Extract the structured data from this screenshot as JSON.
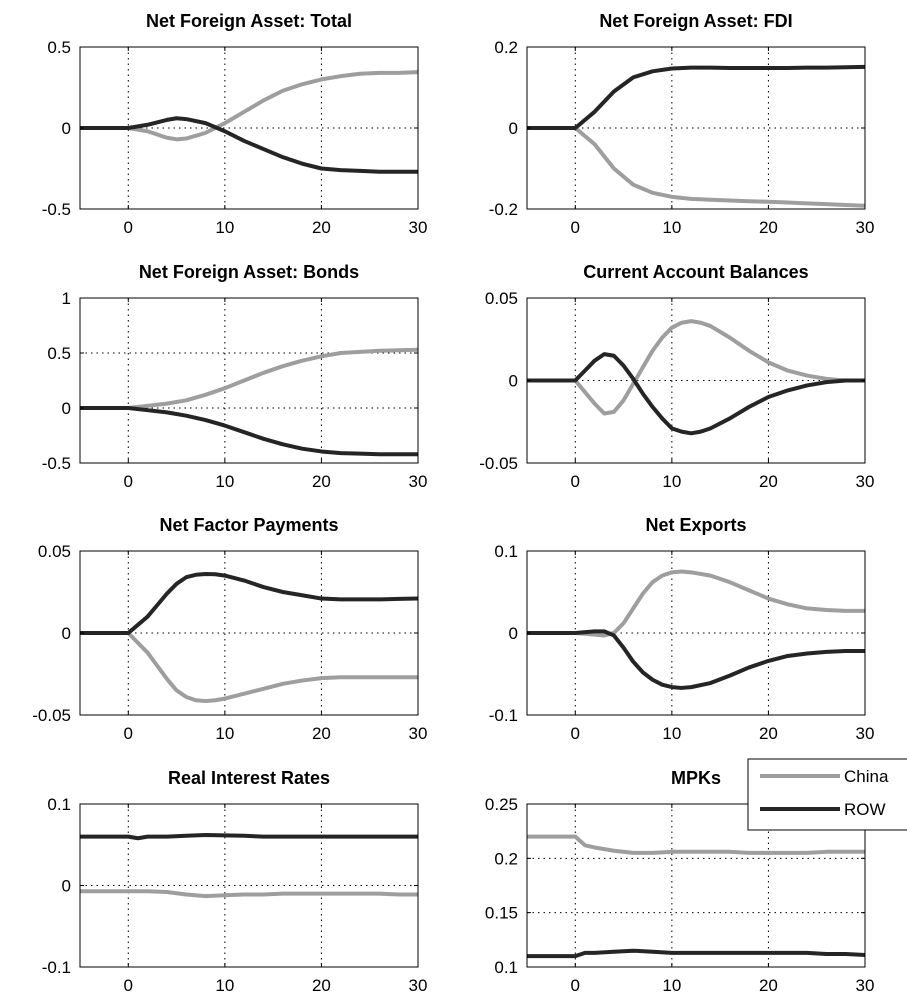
{
  "chart_data": [
    {
      "type": "line",
      "title": "Net Foreign Asset: Total",
      "xlim": [
        -5,
        30
      ],
      "ylim": [
        -0.5,
        0.5
      ],
      "xticks": [
        0,
        10,
        20,
        30
      ],
      "yticks": [
        -0.5,
        0,
        0.5
      ],
      "xtick_labels": [
        "0",
        "10",
        "20",
        "30"
      ],
      "ytick_labels": [
        "-0.5",
        "0",
        "0.5"
      ],
      "grid": true,
      "series": [
        {
          "name": "China",
          "x": [
            -5,
            0,
            2,
            4,
            5,
            6,
            8,
            10,
            12,
            14,
            16,
            18,
            20,
            22,
            24,
            26,
            28,
            30
          ],
          "y": [
            0,
            0,
            -0.02,
            -0.06,
            -0.07,
            -0.065,
            -0.03,
            0.03,
            0.1,
            0.17,
            0.23,
            0.27,
            0.3,
            0.32,
            0.335,
            0.34,
            0.34,
            0.345
          ]
        },
        {
          "name": "ROW",
          "x": [
            -5,
            0,
            2,
            4,
            5,
            6,
            8,
            10,
            12,
            14,
            16,
            18,
            20,
            22,
            24,
            26,
            28,
            30
          ],
          "y": [
            0,
            0,
            0.02,
            0.05,
            0.06,
            0.055,
            0.03,
            -0.02,
            -0.08,
            -0.13,
            -0.18,
            -0.22,
            -0.25,
            -0.26,
            -0.265,
            -0.27,
            -0.27,
            -0.27
          ]
        }
      ]
    },
    {
      "type": "line",
      "title": "Net Foreign Asset: FDI",
      "xlim": [
        -5,
        30
      ],
      "ylim": [
        -0.2,
        0.2
      ],
      "xticks": [
        0,
        10,
        20,
        30
      ],
      "yticks": [
        -0.2,
        0,
        0.2
      ],
      "xtick_labels": [
        "0",
        "10",
        "20",
        "30"
      ],
      "ytick_labels": [
        "-0.2",
        "0",
        "0.2"
      ],
      "grid": true,
      "series": [
        {
          "name": "China",
          "x": [
            -5,
            0,
            2,
            4,
            6,
            8,
            10,
            12,
            14,
            16,
            18,
            20,
            22,
            24,
            26,
            28,
            30
          ],
          "y": [
            0,
            0,
            -0.04,
            -0.1,
            -0.14,
            -0.16,
            -0.17,
            -0.175,
            -0.177,
            -0.179,
            -0.181,
            -0.182,
            -0.184,
            -0.186,
            -0.188,
            -0.19,
            -0.192
          ]
        },
        {
          "name": "ROW",
          "x": [
            -5,
            0,
            2,
            4,
            6,
            8,
            10,
            12,
            14,
            16,
            18,
            20,
            22,
            24,
            26,
            28,
            30
          ],
          "y": [
            0,
            0,
            0.04,
            0.09,
            0.125,
            0.14,
            0.147,
            0.149,
            0.149,
            0.148,
            0.148,
            0.148,
            0.148,
            0.149,
            0.149,
            0.15,
            0.151
          ]
        }
      ]
    },
    {
      "type": "line",
      "title": "Net Foreign Asset: Bonds",
      "xlim": [
        -5,
        30
      ],
      "ylim": [
        -0.5,
        1
      ],
      "xticks": [
        0,
        10,
        20,
        30
      ],
      "yticks": [
        -0.5,
        0,
        0.5,
        1
      ],
      "xtick_labels": [
        "0",
        "10",
        "20",
        "30"
      ],
      "ytick_labels": [
        "-0.5",
        "0",
        "0.5",
        "1"
      ],
      "grid": true,
      "series": [
        {
          "name": "China",
          "x": [
            -5,
            0,
            2,
            4,
            6,
            8,
            10,
            12,
            14,
            16,
            18,
            20,
            22,
            24,
            26,
            28,
            30
          ],
          "y": [
            0,
            0,
            0.02,
            0.04,
            0.07,
            0.12,
            0.18,
            0.25,
            0.32,
            0.38,
            0.43,
            0.47,
            0.5,
            0.51,
            0.52,
            0.525,
            0.53
          ]
        },
        {
          "name": "ROW",
          "x": [
            -5,
            0,
            2,
            4,
            6,
            8,
            10,
            12,
            14,
            16,
            18,
            20,
            22,
            24,
            26,
            28,
            30
          ],
          "y": [
            0,
            0,
            -0.02,
            -0.04,
            -0.07,
            -0.11,
            -0.16,
            -0.22,
            -0.28,
            -0.33,
            -0.37,
            -0.395,
            -0.41,
            -0.415,
            -0.42,
            -0.42,
            -0.42
          ]
        }
      ]
    },
    {
      "type": "line",
      "title": "Current Account Balances",
      "xlim": [
        -5,
        30
      ],
      "ylim": [
        -0.05,
        0.05
      ],
      "xticks": [
        0,
        10,
        20,
        30
      ],
      "yticks": [
        -0.05,
        0,
        0.05
      ],
      "xtick_labels": [
        "0",
        "10",
        "20",
        "30"
      ],
      "ytick_labels": [
        "-0.05",
        "0",
        "0.05"
      ],
      "grid": true,
      "series": [
        {
          "name": "China",
          "x": [
            -5,
            0,
            1,
            2,
            3,
            4,
            5,
            6,
            7,
            8,
            9,
            10,
            11,
            12,
            13,
            14,
            16,
            18,
            20,
            22,
            24,
            26,
            28,
            30
          ],
          "y": [
            0,
            0,
            -0.007,
            -0.014,
            -0.02,
            -0.019,
            -0.012,
            -0.002,
            0.008,
            0.018,
            0.026,
            0.032,
            0.035,
            0.036,
            0.035,
            0.033,
            0.026,
            0.018,
            0.011,
            0.006,
            0.003,
            0.001,
            0,
            0
          ]
        },
        {
          "name": "ROW",
          "x": [
            -5,
            0,
            1,
            2,
            3,
            4,
            5,
            6,
            7,
            8,
            9,
            10,
            11,
            12,
            13,
            14,
            16,
            18,
            20,
            22,
            24,
            26,
            28,
            30
          ],
          "y": [
            0,
            0,
            0.006,
            0.012,
            0.016,
            0.015,
            0.009,
            0.001,
            -0.008,
            -0.016,
            -0.023,
            -0.029,
            -0.031,
            -0.032,
            -0.031,
            -0.029,
            -0.023,
            -0.016,
            -0.01,
            -0.006,
            -0.003,
            -0.001,
            0,
            0
          ]
        }
      ]
    },
    {
      "type": "line",
      "title": "Net Factor Payments",
      "xlim": [
        -5,
        30
      ],
      "ylim": [
        -0.05,
        0.05
      ],
      "xticks": [
        0,
        10,
        20,
        30
      ],
      "yticks": [
        -0.05,
        0,
        0.05
      ],
      "xtick_labels": [
        "0",
        "10",
        "20",
        "30"
      ],
      "ytick_labels": [
        "-0.05",
        "0",
        "0.05"
      ],
      "grid": true,
      "series": [
        {
          "name": "China",
          "x": [
            -5,
            0,
            1,
            2,
            3,
            4,
            5,
            6,
            7,
            8,
            9,
            10,
            12,
            14,
            16,
            18,
            20,
            22,
            24,
            26,
            28,
            30
          ],
          "y": [
            0,
            0,
            -0.006,
            -0.012,
            -0.02,
            -0.028,
            -0.035,
            -0.039,
            -0.041,
            -0.0415,
            -0.041,
            -0.04,
            -0.037,
            -0.034,
            -0.031,
            -0.029,
            -0.0275,
            -0.027,
            -0.027,
            -0.027,
            -0.027,
            -0.027
          ]
        },
        {
          "name": "ROW",
          "x": [
            -5,
            0,
            1,
            2,
            3,
            4,
            5,
            6,
            7,
            8,
            9,
            10,
            12,
            14,
            16,
            18,
            20,
            22,
            24,
            26,
            28,
            30
          ],
          "y": [
            0,
            0,
            0.005,
            0.01,
            0.017,
            0.024,
            0.03,
            0.034,
            0.0355,
            0.036,
            0.0358,
            0.035,
            0.032,
            0.028,
            0.025,
            0.023,
            0.021,
            0.0205,
            0.0205,
            0.0205,
            0.0208,
            0.021
          ]
        }
      ]
    },
    {
      "type": "line",
      "title": "Net Exports",
      "xlim": [
        -5,
        30
      ],
      "ylim": [
        -0.1,
        0.1
      ],
      "xticks": [
        0,
        10,
        20,
        30
      ],
      "yticks": [
        -0.1,
        0,
        0.1
      ],
      "xtick_labels": [
        "0",
        "10",
        "20",
        "30"
      ],
      "ytick_labels": [
        "-0.1",
        "0",
        "0.1"
      ],
      "grid": true,
      "series": [
        {
          "name": "China",
          "x": [
            -5,
            0,
            2,
            3,
            4,
            5,
            6,
            7,
            8,
            9,
            10,
            11,
            12,
            14,
            16,
            18,
            20,
            22,
            24,
            26,
            28,
            30
          ],
          "y": [
            0,
            0,
            -0.002,
            -0.003,
            0,
            0.012,
            0.03,
            0.048,
            0.062,
            0.07,
            0.074,
            0.075,
            0.074,
            0.07,
            0.062,
            0.052,
            0.042,
            0.035,
            0.03,
            0.028,
            0.027,
            0.027
          ]
        },
        {
          "name": "ROW",
          "x": [
            -5,
            0,
            2,
            3,
            4,
            5,
            6,
            7,
            8,
            9,
            10,
            11,
            12,
            14,
            16,
            18,
            20,
            22,
            24,
            26,
            28,
            30
          ],
          "y": [
            0,
            0,
            0.002,
            0.002,
            -0.003,
            -0.018,
            -0.035,
            -0.048,
            -0.057,
            -0.063,
            -0.066,
            -0.067,
            -0.066,
            -0.061,
            -0.052,
            -0.042,
            -0.034,
            -0.028,
            -0.025,
            -0.023,
            -0.022,
            -0.022
          ]
        }
      ]
    },
    {
      "type": "line",
      "title": "Real Interest Rates",
      "xlim": [
        -5,
        30
      ],
      "ylim": [
        -0.1,
        0.1
      ],
      "xticks": [
        0,
        10,
        20,
        30
      ],
      "yticks": [
        -0.1,
        0,
        0.1
      ],
      "xtick_labels": [
        "0",
        "10",
        "20",
        "30"
      ],
      "ytick_labels": [
        "-0.1",
        "0",
        "0.1"
      ],
      "grid": true,
      "series": [
        {
          "name": "China",
          "x": [
            -5,
            0,
            2,
            4,
            6,
            8,
            10,
            12,
            14,
            16,
            18,
            20,
            22,
            24,
            26,
            28,
            30
          ],
          "y": [
            -0.007,
            -0.007,
            -0.007,
            -0.008,
            -0.011,
            -0.013,
            -0.012,
            -0.011,
            -0.011,
            -0.01,
            -0.01,
            -0.01,
            -0.01,
            -0.01,
            -0.01,
            -0.011,
            -0.011
          ]
        },
        {
          "name": "ROW",
          "x": [
            -5,
            0,
            1,
            2,
            4,
            6,
            8,
            10,
            12,
            14,
            16,
            18,
            20,
            22,
            24,
            26,
            28,
            30
          ],
          "y": [
            0.06,
            0.06,
            0.058,
            0.06,
            0.06,
            0.061,
            0.062,
            0.0615,
            0.061,
            0.06,
            0.06,
            0.06,
            0.06,
            0.06,
            0.06,
            0.06,
            0.06,
            0.06
          ]
        }
      ]
    },
    {
      "type": "line",
      "title": "MPKs",
      "xlim": [
        -5,
        30
      ],
      "ylim": [
        0.1,
        0.25
      ],
      "xticks": [
        0,
        10,
        20,
        30
      ],
      "yticks": [
        0.1,
        0.15,
        0.2,
        0.25
      ],
      "xtick_labels": [
        "0",
        "10",
        "20",
        "30"
      ],
      "ytick_labels": [
        "0.1",
        "0.15",
        "0.2",
        "0.25"
      ],
      "grid": true,
      "legend": {
        "position": "top-right",
        "entries": [
          "China",
          "ROW"
        ]
      },
      "series": [
        {
          "name": "China",
          "x": [
            -5,
            0,
            1,
            2,
            4,
            6,
            8,
            10,
            12,
            14,
            16,
            18,
            20,
            22,
            24,
            26,
            28,
            30
          ],
          "y": [
            0.22,
            0.22,
            0.212,
            0.21,
            0.207,
            0.205,
            0.205,
            0.206,
            0.206,
            0.206,
            0.206,
            0.205,
            0.205,
            0.205,
            0.205,
            0.206,
            0.206,
            0.206
          ]
        },
        {
          "name": "ROW",
          "x": [
            -5,
            0,
            1,
            2,
            4,
            6,
            8,
            10,
            12,
            14,
            16,
            18,
            20,
            22,
            24,
            26,
            28,
            30
          ],
          "y": [
            0.11,
            0.11,
            0.113,
            0.113,
            0.114,
            0.115,
            0.114,
            0.113,
            0.113,
            0.113,
            0.113,
            0.113,
            0.113,
            0.113,
            0.113,
            0.112,
            0.112,
            0.111
          ]
        }
      ]
    }
  ],
  "colors": {
    "China": "#9e9e9e",
    "ROW": "#252525"
  }
}
